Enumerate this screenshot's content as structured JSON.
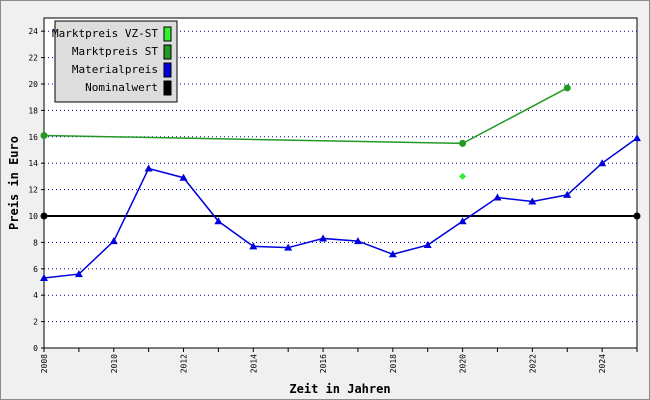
{
  "chart_data": {
    "type": "line",
    "title": "",
    "xlabel": "Zeit in Jahren",
    "ylabel": "Preis in Euro",
    "xlim": [
      2008,
      2025
    ],
    "ylim": [
      0,
      25
    ],
    "x_ticks": [
      "2008",
      "2010",
      "2012",
      "2014",
      "2016",
      "2018",
      "2020",
      "2022",
      "2024"
    ],
    "y_ticks": [
      "0",
      "2",
      "4",
      "6",
      "8",
      "10",
      "12",
      "14",
      "16",
      "18",
      "20",
      "22",
      "24"
    ],
    "grid": "horizontal dotted",
    "legend_position": "top-left",
    "series": [
      {
        "name": "Marktpreis VZ-ST",
        "color": "#33ee33",
        "marker": "diamond",
        "line": false,
        "points": [
          [
            2020,
            13.0
          ]
        ]
      },
      {
        "name": "Marktpreis ST",
        "color": "#229922",
        "marker": "circle",
        "line": true,
        "points": [
          [
            2008,
            16.1
          ],
          [
            2020,
            15.5
          ],
          [
            2023,
            19.7
          ]
        ]
      },
      {
        "name": "Materialpreis",
        "color": "#0000dd",
        "marker": "triangle",
        "line": true,
        "points": [
          [
            2008,
            5.3
          ],
          [
            2009,
            5.6
          ],
          [
            2010,
            8.1
          ],
          [
            2011,
            13.6
          ],
          [
            2012,
            12.9
          ],
          [
            2013,
            9.6
          ],
          [
            2014,
            7.7
          ],
          [
            2015,
            7.6
          ],
          [
            2016,
            8.3
          ],
          [
            2017,
            8.1
          ],
          [
            2018,
            7.1
          ],
          [
            2019,
            7.8
          ],
          [
            2020,
            9.6
          ],
          [
            2021,
            11.4
          ],
          [
            2022,
            11.1
          ],
          [
            2023,
            11.6
          ],
          [
            2024,
            14.0
          ],
          [
            2025,
            15.9
          ]
        ]
      },
      {
        "name": "Nominalwert",
        "color": "#000000",
        "marker": "circle",
        "line": true,
        "points": [
          [
            2008,
            10.0
          ],
          [
            2025,
            10.0
          ]
        ]
      }
    ]
  }
}
